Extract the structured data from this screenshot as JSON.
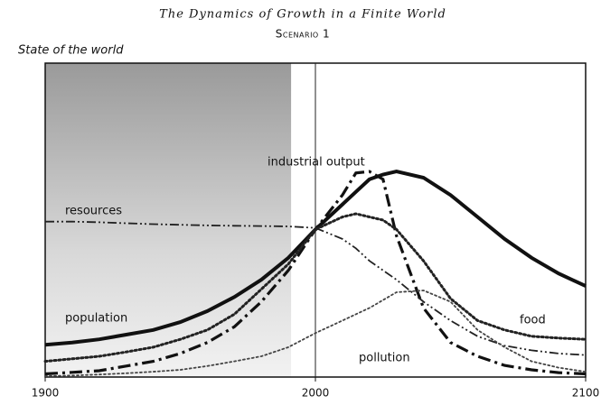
{
  "chart_data": {
    "type": "line",
    "title": "The Dynamics of Growth in a Finite World",
    "subtitle": "Scenario 1",
    "y_label": "State of the world",
    "x": [
      1900,
      1910,
      1920,
      1930,
      1940,
      1950,
      1960,
      1970,
      1980,
      1990,
      2000,
      2010,
      2015,
      2020,
      2025,
      2030,
      2040,
      2050,
      2060,
      2070,
      2080,
      2090,
      2100
    ],
    "xlim": [
      1900,
      2100
    ],
    "xticks": [
      1900,
      2000,
      2100
    ],
    "ylim": [
      0,
      100
    ],
    "vline": 2000,
    "shaded_xrange": [
      1900,
      1991
    ],
    "series": [
      {
        "name": "population",
        "color": "#111111",
        "style": "solid",
        "width": 4,
        "values": [
          10.3,
          11,
          12,
          13.5,
          15,
          17.5,
          21,
          25.5,
          31,
          38,
          47,
          55,
          59,
          63,
          64.5,
          65.5,
          63.5,
          58,
          51,
          44,
          38,
          33,
          29
        ]
      },
      {
        "name": "industrial output",
        "color": "#111111",
        "style": "dashdot",
        "width": 3.2,
        "values": [
          1,
          1.5,
          2,
          3.5,
          5,
          7.5,
          11,
          16,
          24,
          34,
          47,
          58,
          65,
          65.5,
          63,
          45,
          22,
          11,
          6.6,
          3.7,
          2.3,
          1.4,
          1
        ]
      },
      {
        "name": "food",
        "color": "#222222",
        "style": "dotted",
        "width": 3,
        "values": [
          5,
          5.8,
          6.6,
          8,
          9.5,
          12,
          15,
          20,
          28,
          36,
          47,
          51,
          52,
          51,
          50,
          47,
          37,
          25,
          18,
          15,
          13,
          12.4,
          12
        ]
      },
      {
        "name": "resources",
        "color": "#222222",
        "style": "dashdotdot",
        "width": 1.8,
        "values": [
          49.5,
          49.5,
          49.3,
          49,
          48.7,
          48.5,
          48.3,
          48.2,
          48.1,
          48,
          47.5,
          44,
          41,
          37,
          34,
          31,
          24,
          18,
          13,
          10,
          8.5,
          7.5,
          7
        ]
      },
      {
        "name": "pollution",
        "color": "#444444",
        "style": "dotted",
        "width": 1.8,
        "values": [
          0.3,
          0.5,
          0.8,
          1.2,
          1.7,
          2.3,
          3.5,
          5,
          6.6,
          9.5,
          14,
          18,
          20,
          22,
          24.5,
          27,
          27.6,
          24,
          15,
          9.5,
          5,
          3,
          1.7
        ]
      }
    ]
  }
}
